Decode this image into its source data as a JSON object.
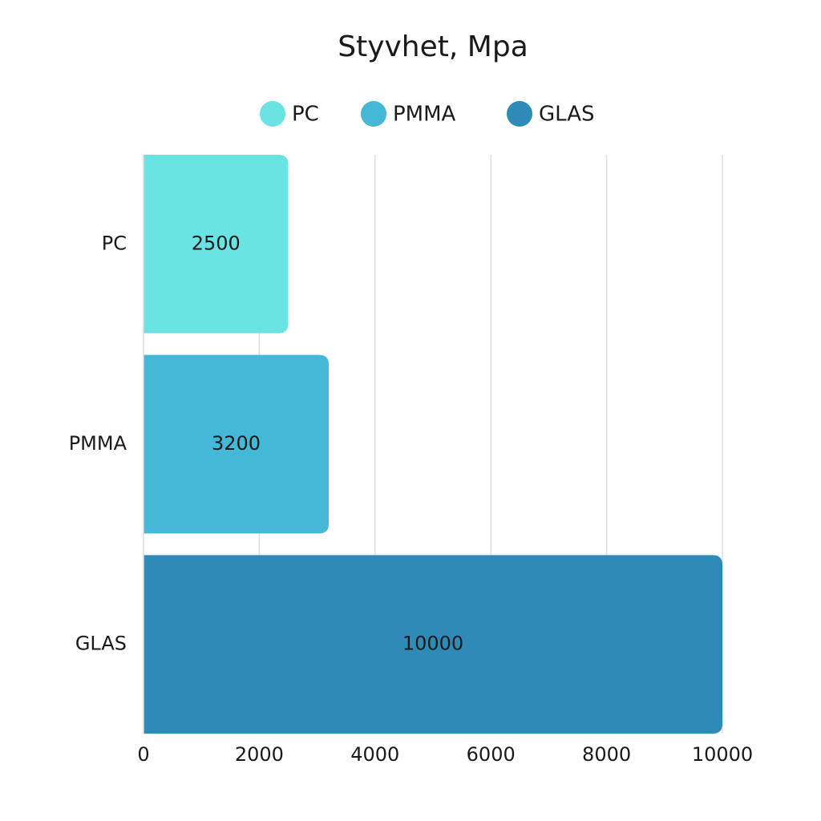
{
  "chart_data": {
    "type": "bar",
    "orientation": "horizontal",
    "title": "Styvhet, Mpa",
    "categories": [
      "PC",
      "PMMA",
      "GLAS"
    ],
    "values": [
      2500,
      3200,
      10000
    ],
    "colors": [
      "#6ae3e3",
      "#44b8d6",
      "#2e8bb8"
    ],
    "xlim": [
      0,
      10000
    ],
    "xticks": [
      0,
      2000,
      4000,
      6000,
      8000,
      10000
    ],
    "grid": true,
    "legend": "top"
  }
}
